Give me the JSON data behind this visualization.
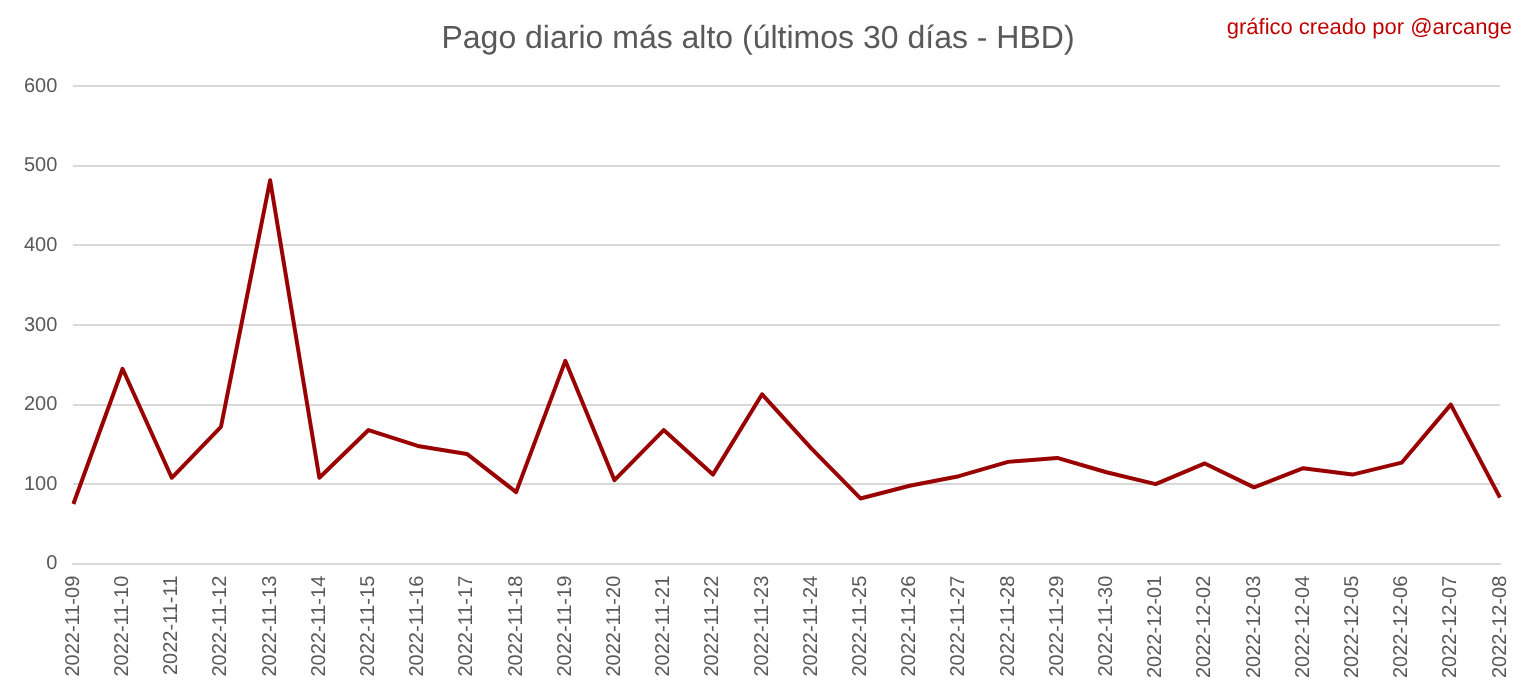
{
  "chart_data": {
    "type": "line",
    "title": "Pago diario más alto (últimos 30 días - HBD)",
    "annotations": [
      "gráfico creado por @arcange"
    ],
    "categories": [
      "2022-11-09",
      "2022-11-10",
      "2022-11-11",
      "2022-11-12",
      "2022-11-13",
      "2022-11-14",
      "2022-11-15",
      "2022-11-16",
      "2022-11-17",
      "2022-11-18",
      "2022-11-19",
      "2022-11-20",
      "2022-11-21",
      "2022-11-22",
      "2022-11-23",
      "2022-11-24",
      "2022-11-25",
      "2022-11-26",
      "2022-11-27",
      "2022-11-28",
      "2022-11-29",
      "2022-11-30",
      "2022-12-01",
      "2022-12-02",
      "2022-12-03",
      "2022-12-04",
      "2022-12-05",
      "2022-12-06",
      "2022-12-07",
      "2022-12-08"
    ],
    "series": [
      {
        "color": "#990000",
        "values": [
          75,
          245,
          108,
          172,
          482,
          108,
          168,
          148,
          138,
          90,
          255,
          105,
          168,
          112,
          213,
          145,
          82,
          98,
          110,
          128,
          133,
          115,
          100,
          126,
          96,
          120,
          112,
          127,
          200,
          83
        ]
      }
    ],
    "ylim": [
      0,
      600
    ],
    "yticks": [
      0,
      100,
      200,
      300,
      400,
      500,
      600
    ],
    "grid": "y",
    "legend": false,
    "marker": "none",
    "line_style": "solid"
  }
}
